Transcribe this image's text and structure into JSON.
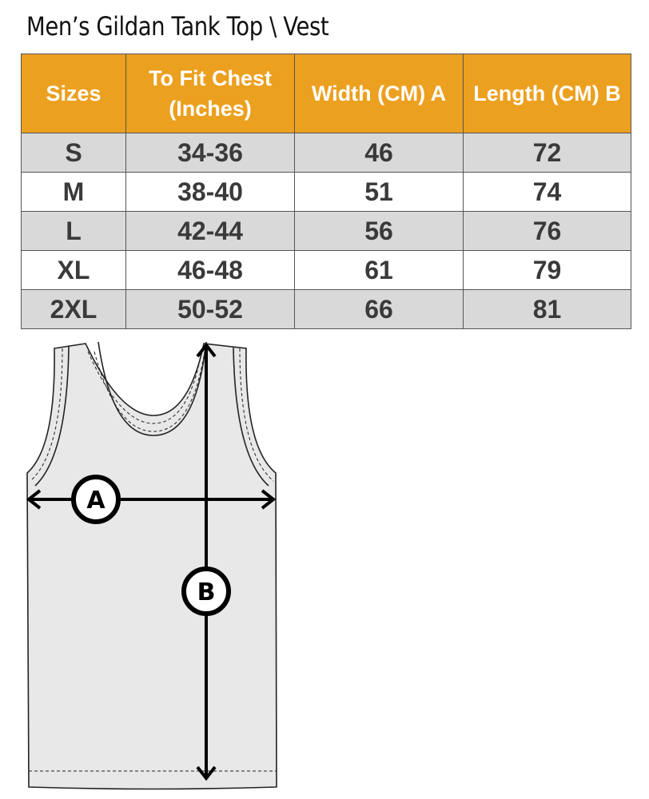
{
  "title": "Men’s Gildan Tank Top \\ Vest",
  "table": {
    "headers": [
      "Sizes",
      "To Fit Chest (Inches)",
      "Width (CM) A",
      "Length  (CM) B"
    ],
    "header_color": "#eca01f",
    "rows": [
      [
        "S",
        "34-36",
        "46",
        "72"
      ],
      [
        "M",
        "38-40",
        "51",
        "74"
      ],
      [
        "L",
        "42-44",
        "56",
        "76"
      ],
      [
        "XL",
        "46-48",
        "61",
        "79"
      ],
      [
        "2XL",
        "50-52",
        "66",
        "81"
      ]
    ]
  },
  "diagram": {
    "label_a": "A",
    "label_b": "B"
  }
}
